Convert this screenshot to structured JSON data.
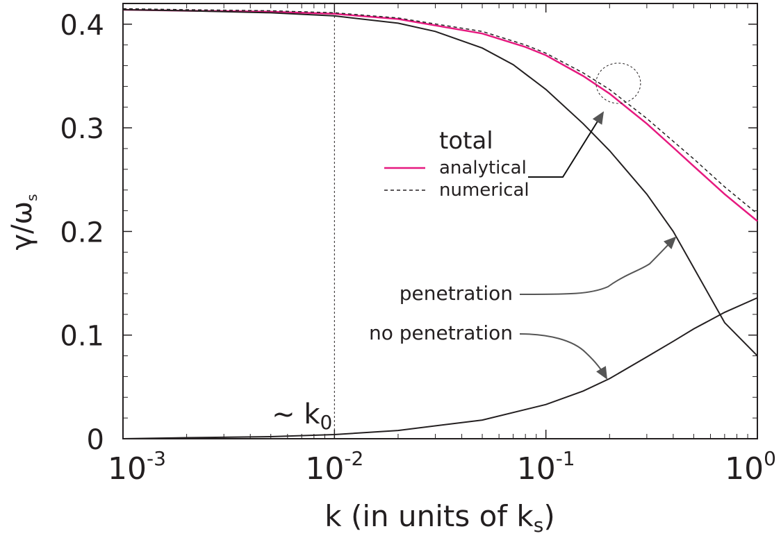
{
  "chart_data": {
    "type": "line",
    "title": "",
    "xlabel": "k (in units of k",
    "xlabel_sub": "s",
    "xlabel_close": ")",
    "ylabel_main": "γ/ω",
    "ylabel_sub": "s",
    "x_scale": "log",
    "xlim": [
      0.001,
      1
    ],
    "ylim": [
      0,
      0.42
    ],
    "grid": false,
    "x_ticks": [
      {
        "value": 0.001,
        "base": "10",
        "exp": "-3"
      },
      {
        "value": 0.01,
        "base": "10",
        "exp": "-2"
      },
      {
        "value": 0.1,
        "base": "10",
        "exp": "-1"
      },
      {
        "value": 1,
        "base": "10",
        "exp": "0"
      }
    ],
    "y_ticks": [
      {
        "value": 0,
        "label": "0"
      },
      {
        "value": 0.1,
        "label": "0.1"
      },
      {
        "value": 0.2,
        "label": "0.2"
      },
      {
        "value": 0.3,
        "label": "0.3"
      },
      {
        "value": 0.4,
        "label": "0.4"
      }
    ],
    "reference_line": {
      "x": 0.01,
      "label": "~ k",
      "label_sub": "0"
    },
    "legend": {
      "title": "total",
      "placement": "center-right",
      "entries": [
        "analytical",
        "numerical"
      ]
    },
    "colors": {
      "analytical": "#e6197f",
      "axis": "#231f20",
      "annotation_arrow": "#555555"
    },
    "annotations": {
      "penetration": "penetration",
      "no_penetration": "no penetration"
    },
    "series": [
      {
        "name": "analytical",
        "style": "solid",
        "x": [
          0.001,
          0.002,
          0.005,
          0.01,
          0.02,
          0.05,
          0.08,
          0.1,
          0.15,
          0.2,
          0.3,
          0.4,
          0.5,
          0.7,
          1.0
        ],
        "y": [
          0.414,
          0.413,
          0.412,
          0.41,
          0.405,
          0.391,
          0.378,
          0.37,
          0.35,
          0.333,
          0.304,
          0.281,
          0.263,
          0.236,
          0.21
        ]
      },
      {
        "name": "numerical",
        "style": "dashed",
        "x": [
          0.001,
          0.002,
          0.005,
          0.01,
          0.02,
          0.05,
          0.08,
          0.1,
          0.15,
          0.2,
          0.3,
          0.4,
          0.5,
          0.7,
          1.0
        ],
        "y": [
          0.415,
          0.414,
          0.413,
          0.411,
          0.406,
          0.393,
          0.38,
          0.372,
          0.353,
          0.337,
          0.309,
          0.287,
          0.27,
          0.243,
          0.217
        ]
      },
      {
        "name": "penetration",
        "style": "solid",
        "x": [
          0.001,
          0.002,
          0.005,
          0.01,
          0.02,
          0.03,
          0.05,
          0.07,
          0.1,
          0.15,
          0.2,
          0.3,
          0.4,
          0.5,
          0.7,
          1.0
        ],
        "y": [
          0.414,
          0.413,
          0.411,
          0.408,
          0.401,
          0.393,
          0.377,
          0.361,
          0.337,
          0.304,
          0.278,
          0.236,
          0.2,
          0.165,
          0.112,
          0.08
        ]
      },
      {
        "name": "no penetration",
        "style": "solid",
        "x": [
          0.001,
          0.002,
          0.005,
          0.01,
          0.02,
          0.05,
          0.1,
          0.15,
          0.2,
          0.3,
          0.4,
          0.5,
          0.7,
          1.0
        ],
        "y": [
          0.0,
          0.001,
          0.002,
          0.004,
          0.008,
          0.018,
          0.033,
          0.046,
          0.058,
          0.079,
          0.094,
          0.106,
          0.122,
          0.136
        ]
      }
    ]
  }
}
